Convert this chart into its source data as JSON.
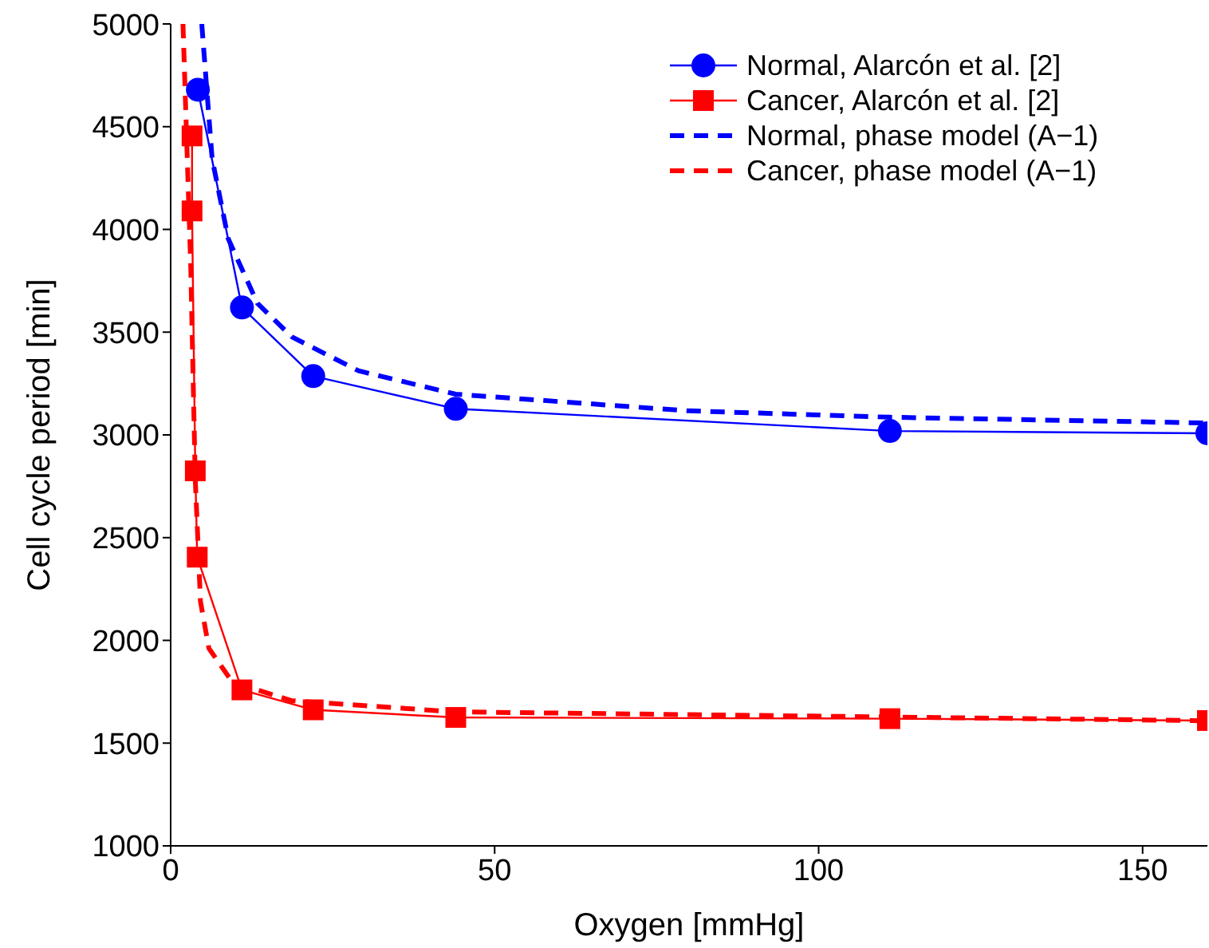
{
  "chart_data": {
    "type": "line",
    "xlabel": "Oxygen [mmHg]",
    "ylabel": "Cell cycle period [min]",
    "xlim": [
      0,
      160
    ],
    "xticks": [
      0,
      50,
      100,
      150
    ],
    "ylim": [
      1000,
      5000
    ],
    "yticks": [
      1000,
      1500,
      2000,
      2500,
      3000,
      3500,
      4000,
      4500,
      5000
    ],
    "grid": false,
    "legend": "top right",
    "series": [
      {
        "name": "Normal, Alarcón et al. [2]",
        "color": "#0000ff",
        "marker": "circle",
        "line_style": "solid",
        "x": [
          4.2,
          11,
          22,
          44,
          111,
          160
        ],
        "values": [
          4680,
          3620,
          3286,
          3127,
          3019,
          3008
        ]
      },
      {
        "name": "Cancer, Alarcón et al. [2]",
        "color": "#ff0000",
        "marker": "square",
        "line_style": "solid",
        "x": [
          3.3,
          3.3,
          3.8,
          4.1,
          11,
          22,
          44,
          111,
          160
        ],
        "values": [
          4455,
          4090,
          2825,
          2405,
          1759,
          1662,
          1625,
          1619,
          1610
        ]
      },
      {
        "name": "Normal, phase model (A−1)",
        "color": "#0000ff",
        "marker": "none",
        "line_style": "dashed",
        "x": [
          4.8,
          6.4,
          8.9,
          13.4,
          18.7,
          29,
          44,
          80,
          111,
          160
        ],
        "values": [
          5000,
          4344,
          3953,
          3640,
          3477,
          3312,
          3198,
          3117,
          3086,
          3058
        ]
      },
      {
        "name": "Cancer, phase model (A−1)",
        "color": "#ff0000",
        "marker": "none",
        "line_style": "dashed",
        "x": [
          1.9,
          2.4,
          3.1,
          3.8,
          4.6,
          5.9,
          9.5,
          18.6,
          44,
          160
        ],
        "values": [
          5000,
          4508,
          3820,
          2781,
          2189,
          1961,
          1798,
          1707,
          1652,
          1609
        ]
      }
    ]
  }
}
